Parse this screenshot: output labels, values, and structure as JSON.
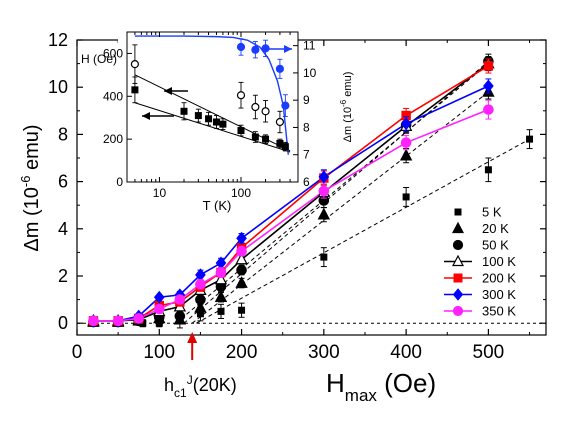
{
  "chart_data": [
    {
      "type": "scatter",
      "xlabel_main": "H",
      "xlabel_sub": "max",
      "xlabel_unit": " (Oe)",
      "ylabel_main": "Δm (10",
      "ylabel_exp": "-6",
      "ylabel_unit": " emu)",
      "xlim": [
        0,
        570
      ],
      "ylim": [
        -0.5,
        12
      ],
      "xticks": [
        0,
        100,
        200,
        300,
        400,
        500
      ],
      "yticks": [
        0,
        2,
        4,
        6,
        8,
        10,
        12
      ],
      "annotation": {
        "main": "h",
        "sub": "c1",
        "sup": "J",
        "rest": "(20K)",
        "x": 140
      },
      "series": [
        {
          "name": "5 K",
          "marker": "square",
          "fill": "#000000",
          "stroke": "#000000",
          "connect": false,
          "x": [
            20,
            50,
            80,
            100,
            125,
            150,
            175,
            200,
            300,
            400,
            500,
            550
          ],
          "y": [
            0.05,
            0.05,
            0.0,
            0.0,
            0.1,
            0.4,
            0.5,
            0.55,
            2.8,
            5.35,
            6.5,
            7.8
          ],
          "err": [
            0.15,
            0.15,
            0.15,
            0.15,
            0.3,
            0.3,
            0.3,
            0.3,
            0.4,
            0.4,
            0.5,
            0.4
          ]
        },
        {
          "name": "20 K",
          "marker": "triangle",
          "fill": "#000000",
          "stroke": "#000000",
          "connect": false,
          "x": [
            20,
            50,
            75,
            100,
            125,
            150,
            175,
            200,
            300,
            400,
            500
          ],
          "y": [
            0.05,
            0.05,
            0.1,
            0.2,
            0.15,
            0.65,
            1.1,
            1.7,
            4.6,
            7.1,
            9.8
          ],
          "err": [
            0.1,
            0.1,
            0.1,
            0.1,
            0.15,
            0.2,
            0.2,
            0.2,
            0.3,
            0.3,
            0.3
          ]
        },
        {
          "name": "50 K",
          "marker": "circle",
          "fill": "#000000",
          "stroke": "#000000",
          "connect": false,
          "x": [
            20,
            50,
            75,
            100,
            125,
            150,
            175,
            200,
            300,
            400,
            500
          ],
          "y": [
            0.05,
            0.05,
            0.1,
            0.25,
            0.3,
            1.0,
            1.55,
            2.25,
            5.2,
            8.4,
            11.1
          ],
          "err": [
            0.1,
            0.1,
            0.1,
            0.1,
            0.15,
            0.2,
            0.2,
            0.2,
            0.3,
            0.3,
            0.3
          ]
        },
        {
          "name": "100 K",
          "marker": "triangle-open",
          "fill": "#ffffff",
          "stroke": "#000000",
          "connect": true,
          "x": [
            20,
            50,
            75,
            100,
            125,
            150,
            175,
            200,
            300,
            400,
            500
          ],
          "y": [
            0.1,
            0.1,
            0.15,
            0.5,
            0.7,
            1.4,
            1.85,
            2.7,
            5.55,
            8.35,
            11.0
          ],
          "err": [
            0.1,
            0.1,
            0.1,
            0.1,
            0.15,
            0.2,
            0.2,
            0.2,
            0.3,
            0.3,
            0.3
          ]
        },
        {
          "name": "200 K",
          "marker": "square",
          "fill": "#ff0000",
          "stroke": "#ff0000",
          "connect": true,
          "x": [
            20,
            50,
            75,
            100,
            125,
            150,
            175,
            200,
            300,
            400,
            500
          ],
          "y": [
            0.1,
            0.1,
            0.2,
            0.75,
            0.9,
            1.55,
            2.15,
            3.2,
            6.15,
            8.8,
            10.9
          ],
          "err": [
            0.1,
            0.1,
            0.1,
            0.1,
            0.15,
            0.2,
            0.2,
            0.2,
            0.3,
            0.3,
            0.3
          ]
        },
        {
          "name": "300 K",
          "marker": "diamond",
          "fill": "#0000ff",
          "stroke": "#0000ff",
          "connect": true,
          "x": [
            20,
            50,
            75,
            100,
            125,
            150,
            175,
            200,
            300,
            400,
            500
          ],
          "y": [
            0.1,
            0.1,
            0.3,
            1.1,
            1.2,
            2.05,
            2.55,
            3.6,
            6.2,
            8.45,
            10.05
          ],
          "err": [
            0.1,
            0.1,
            0.1,
            0.1,
            0.15,
            0.2,
            0.2,
            0.2,
            0.3,
            0.3,
            0.3
          ]
        },
        {
          "name": "350 K",
          "marker": "circle",
          "fill": "#ff22ff",
          "stroke": "#ff22ff",
          "connect": true,
          "x": [
            20,
            50,
            75,
            100,
            125,
            150,
            175,
            200,
            300,
            400,
            500
          ],
          "y": [
            0.1,
            0.1,
            0.2,
            0.6,
            1.0,
            1.65,
            2.15,
            3.05,
            5.6,
            7.65,
            9.05
          ],
          "err": [
            0.1,
            0.1,
            0.1,
            0.1,
            0.15,
            0.2,
            0.2,
            0.2,
            0.3,
            0.3,
            0.4
          ]
        }
      ],
      "fit_lines": [
        {
          "x": [
            145,
            550
          ],
          "y": [
            0,
            7.8
          ]
        },
        {
          "x": [
            140,
            500
          ],
          "y": [
            0,
            9.8
          ]
        },
        {
          "x": [
            130,
            500
          ],
          "y": [
            0,
            11.1
          ]
        },
        {
          "x": [
            120,
            500
          ],
          "y": [
            0,
            11.0
          ]
        }
      ],
      "baseline_y": 0
    },
    {
      "type": "scatter",
      "role": "inset",
      "xlabel": "T (K)",
      "ylabel_left": "H (Oe)",
      "ylabel_right_main": "Δm (10",
      "ylabel_right_exp": "-6",
      "ylabel_right_unit": " emu)",
      "xscale": "log",
      "xlim": [
        4,
        500
      ],
      "ylim_left": [
        0,
        700
      ],
      "ylim_right": [
        6,
        11.5
      ],
      "xticks": [
        10,
        100
      ],
      "xtick_labels": [
        "10",
        "100"
      ],
      "yticks_left": [
        0,
        200,
        400,
        600
      ],
      "yticks_right": [
        6,
        7,
        8,
        9,
        10,
        11
      ],
      "series": [
        {
          "name": "H_filled",
          "axis": "left",
          "marker": "square",
          "fill": "#000000",
          "stroke": "#000000",
          "x": [
            5,
            20,
            30,
            40,
            50,
            60,
            100,
            150,
            200,
            300,
            350
          ],
          "y": [
            430,
            330,
            310,
            295,
            280,
            270,
            240,
            210,
            200,
            180,
            165
          ],
          "err": [
            60,
            40,
            30,
            30,
            30,
            25,
            25,
            25,
            20,
            20,
            20
          ]
        },
        {
          "name": "H_open",
          "axis": "left",
          "marker": "circle-open",
          "fill": "#ffffff",
          "stroke": "#000000",
          "x": [
            5,
            100,
            150,
            200,
            300
          ],
          "y": [
            550,
            405,
            350,
            330,
            280
          ],
          "err": [
            90,
            60,
            55,
            50,
            50
          ]
        },
        {
          "name": "dm",
          "axis": "right",
          "marker": "circle",
          "fill": "#1a3dff",
          "stroke": "#1a3dff",
          "x": [
            100,
            150,
            200,
            300,
            350
          ],
          "y": [
            10.95,
            10.85,
            10.9,
            10.15,
            8.8
          ],
          "err": [
            0.3,
            0.3,
            0.3,
            0.35,
            0.4
          ]
        }
      ],
      "curve_dm": {
        "x": [
          5,
          20,
          50,
          80,
          120,
          170,
          220,
          280,
          330,
          380
        ],
        "y": [
          11.35,
          11.35,
          11.33,
          11.3,
          11.2,
          10.95,
          10.5,
          9.7,
          8.8,
          7.0
        ]
      },
      "line_filled": {
        "x": [
          5,
          400
        ],
        "y": [
          370,
          140
        ]
      },
      "line_open": {
        "x": [
          5,
          400
        ],
        "y": [
          500,
          145
        ]
      }
    }
  ],
  "legend": [
    {
      "label": "5 K"
    },
    {
      "label": "20 K"
    },
    {
      "label": "50 K"
    },
    {
      "label": "100 K"
    },
    {
      "label": "200 K"
    },
    {
      "label": "300 K"
    },
    {
      "label": "350 K"
    }
  ]
}
